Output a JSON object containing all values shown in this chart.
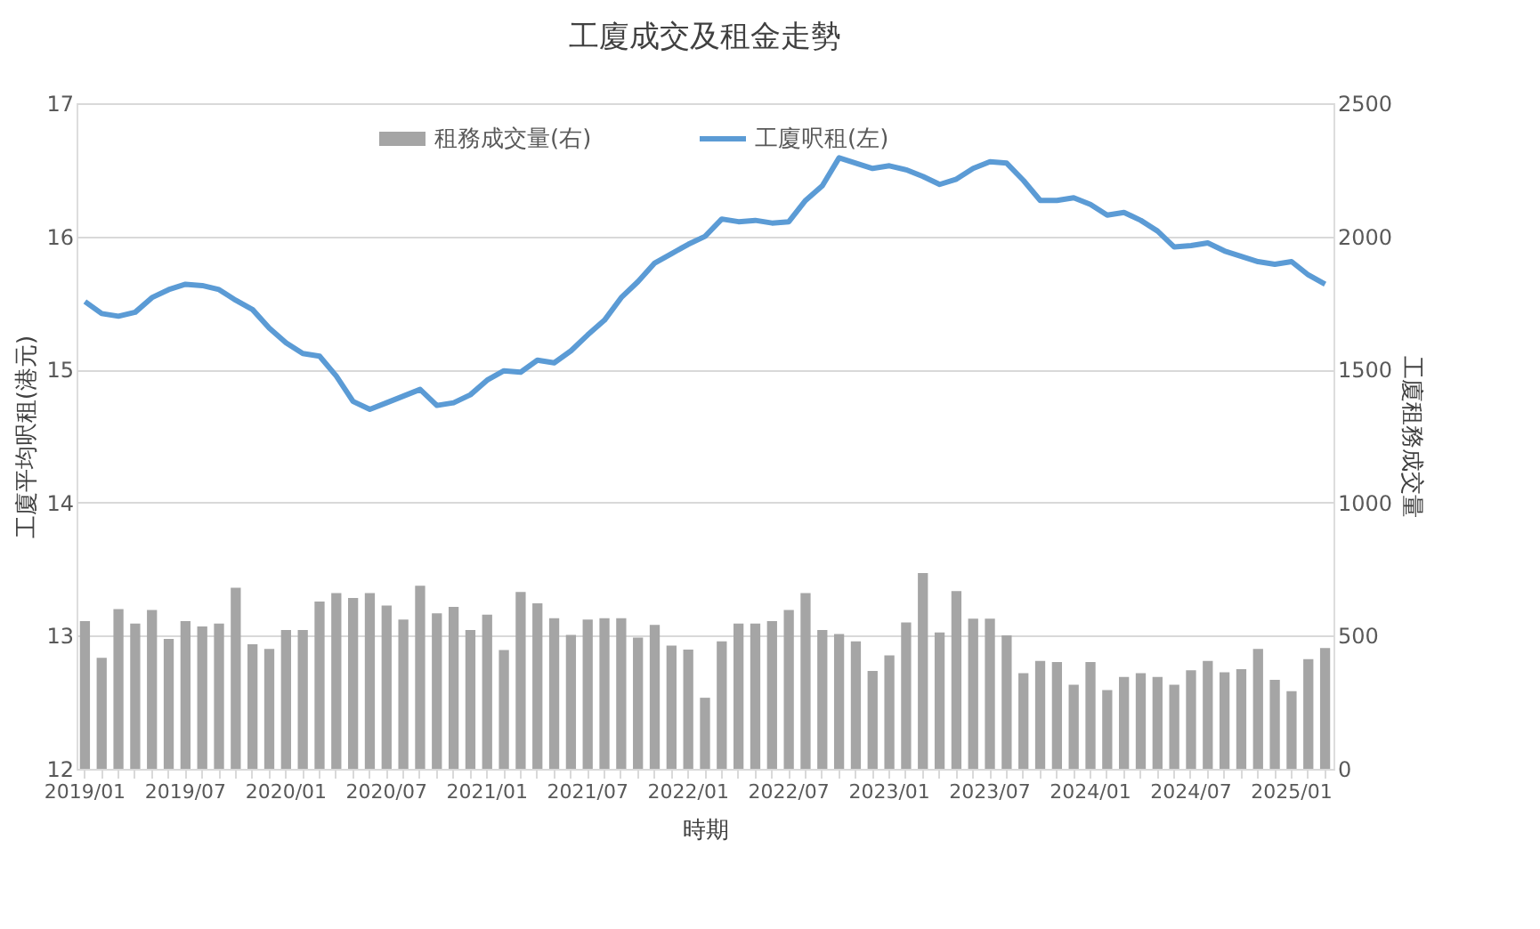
{
  "chart_data": {
    "type": "bar",
    "title": "工廈成交及租金走勢",
    "xlabel": "時期",
    "ylabel": "工廈平均呎租(港元)",
    "y2label": "工廈租務成交量",
    "categories": [
      "2019/01",
      null,
      null,
      null,
      null,
      null,
      "2019/07",
      null,
      null,
      null,
      null,
      null,
      "2020/01",
      null,
      null,
      null,
      null,
      null,
      "2020/07",
      null,
      null,
      null,
      null,
      null,
      "2021/01",
      null,
      null,
      null,
      null,
      null,
      "2021/07",
      null,
      null,
      null,
      null,
      null,
      "2022/01",
      null,
      null,
      null,
      null,
      null,
      "2022/07",
      null,
      null,
      null,
      null,
      null,
      "2023/01",
      null,
      null,
      null,
      null,
      null,
      "2023/07",
      null,
      null,
      null,
      null,
      null,
      "2024/01",
      null,
      null,
      null,
      null,
      null,
      "2024/07",
      null,
      null,
      null,
      null,
      null,
      "2025/01",
      null,
      null
    ],
    "series": [
      {
        "name": "租務成交量(右)",
        "axis": "y2",
        "color": "#a5a5a5",
        "values": [
          555,
          417,
          600,
          546,
          597,
          488,
          555,
          535,
          546,
          680,
          468,
          450,
          521,
          521,
          628,
          660,
          642,
          660,
          613,
          561,
          688,
          584,
          608,
          521,
          579,
          446,
          664,
          622,
          566,
          503,
          561,
          566,
          566,
          493,
          541,
          463,
          448,
          267,
          479,
          546,
          546,
          555,
          597,
          660,
          521,
          506,
          479,
          368,
          426,
          550,
          735,
          512,
          668,
          564,
          564,
          501,
          359,
          405,
          401,
          316,
          401,
          296,
          345,
          359,
          345,
          316,
          370,
          405,
          363,
          374,
          450,
          334,
          292,
          412,
          454
        ]
      },
      {
        "name": "工廈呎租(左)",
        "type": "line",
        "axis": "y",
        "color": "#5b9bd5",
        "values": [
          15.51,
          15.42,
          15.4,
          15.43,
          15.54,
          15.6,
          15.64,
          15.63,
          15.6,
          15.52,
          15.45,
          15.31,
          15.2,
          15.12,
          15.1,
          14.95,
          14.76,
          14.7,
          14.75,
          14.8,
          14.85,
          14.73,
          14.75,
          14.81,
          14.92,
          14.99,
          14.98,
          15.07,
          15.05,
          15.14,
          15.26,
          15.37,
          15.54,
          15.66,
          15.8,
          15.87,
          15.94,
          16.0,
          16.13,
          16.11,
          16.12,
          16.1,
          16.11,
          16.27,
          16.38,
          16.59,
          16.55,
          16.51,
          16.53,
          16.5,
          16.45,
          16.39,
          16.43,
          16.51,
          16.56,
          16.55,
          16.42,
          16.27,
          16.27,
          16.29,
          16.24,
          16.16,
          16.18,
          16.12,
          16.04,
          15.92,
          15.93,
          15.95,
          15.89,
          15.85,
          15.81,
          15.79,
          15.81,
          15.71,
          15.64
        ]
      }
    ],
    "ylim": [
      12,
      17
    ],
    "yticks": [
      12,
      13,
      14,
      15,
      16,
      17
    ],
    "y2lim": [
      0,
      2500
    ],
    "y2ticks": [
      0,
      500,
      1000,
      1500,
      2000,
      2500
    ],
    "grid": "y",
    "legend": "top",
    "marker": "none",
    "line_style": "solid"
  }
}
